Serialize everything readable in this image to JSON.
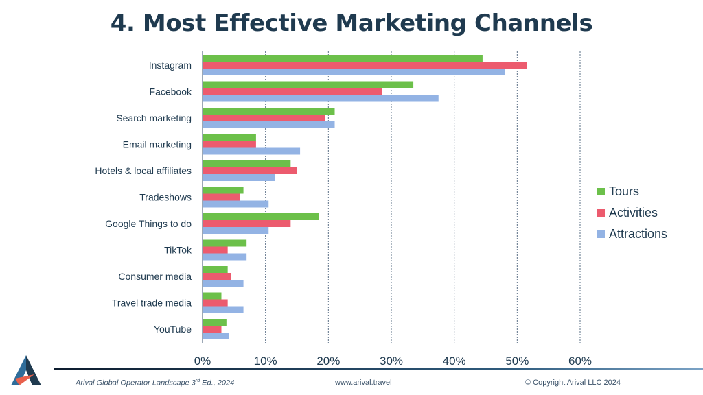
{
  "title": "4. Most Effective Marketing Channels",
  "colors": {
    "tours": "#6cc04a",
    "activities": "#ec5b6e",
    "attractions": "#93b3e4",
    "title": "#1f3a4f",
    "gridline": "#5a6f86"
  },
  "chart_data": {
    "type": "bar",
    "orientation": "horizontal",
    "title": "4. Most Effective Marketing Channels",
    "categories": [
      "Instagram",
      "Facebook",
      "Search marketing",
      "Email marketing",
      "Hotels &  local affiliates",
      "Tradeshows",
      "Google Things to do",
      "TikTok",
      "Consumer media",
      "Travel trade media",
      "YouTube"
    ],
    "series": [
      {
        "name": "Tours",
        "color": "#6cc04a",
        "values": [
          44.5,
          33.5,
          21,
          8.5,
          14,
          6.5,
          18.5,
          7,
          4,
          3,
          3.8
        ]
      },
      {
        "name": "Activities",
        "color": "#ec5b6e",
        "values": [
          51.5,
          28.5,
          19.5,
          8.5,
          15,
          6,
          14,
          4,
          4.5,
          4,
          3
        ]
      },
      {
        "name": "Attractions",
        "color": "#93b3e4",
        "values": [
          48,
          37.5,
          21,
          15.5,
          11.5,
          10.5,
          10.5,
          7,
          6.5,
          6.5,
          4.2
        ]
      }
    ],
    "xlim": [
      0,
      60
    ],
    "xticks": [
      "0%",
      "10%",
      "20%",
      "30%",
      "40%",
      "50%",
      "60%"
    ],
    "grid": "vertical dashed",
    "legend_position": "right"
  },
  "legend": [
    {
      "label": "Tours",
      "color": "#6cc04a"
    },
    {
      "label": "Activities",
      "color": "#ec5b6e"
    },
    {
      "label": "Attractions",
      "color": "#93b3e4"
    }
  ],
  "footer": {
    "left": "Arival Global Operator Landscape 3rd Ed., 2024",
    "center": "www.arival.travel",
    "right": "© Copyright Arival LLC 2024"
  }
}
